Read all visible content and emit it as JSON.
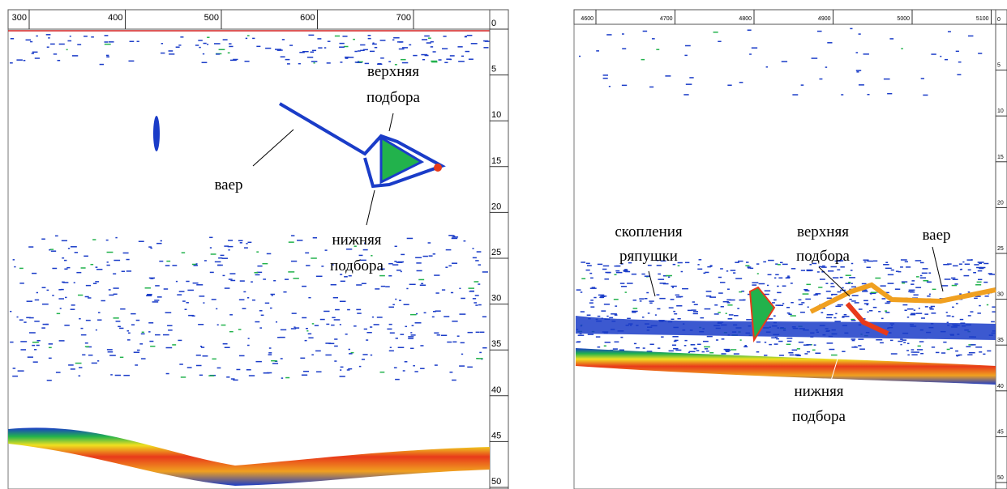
{
  "left_panel": {
    "x_ticks": [
      300,
      400,
      500,
      600,
      700
    ],
    "depth_ticks": [
      0,
      5,
      10,
      15,
      20,
      25,
      30,
      35,
      40,
      45,
      50
    ],
    "annotations": {
      "warp": "ваер",
      "headrope": [
        "верхняя",
        "подбора"
      ],
      "footrope": [
        "нижняя",
        "подбора"
      ]
    }
  },
  "right_panel": {
    "x_ticks": [
      4600,
      4700,
      4800,
      4900,
      5000,
      5100
    ],
    "depth_ticks": [
      0,
      5,
      10,
      15,
      20,
      25,
      30,
      35,
      40,
      45,
      50
    ],
    "annotations": {
      "fish": [
        "скопления",
        "ряпушки"
      ],
      "headrope": [
        "верхняя",
        "подбора"
      ],
      "warp": "ваер",
      "footrope": [
        "нижняя",
        "подбора"
      ]
    }
  }
}
